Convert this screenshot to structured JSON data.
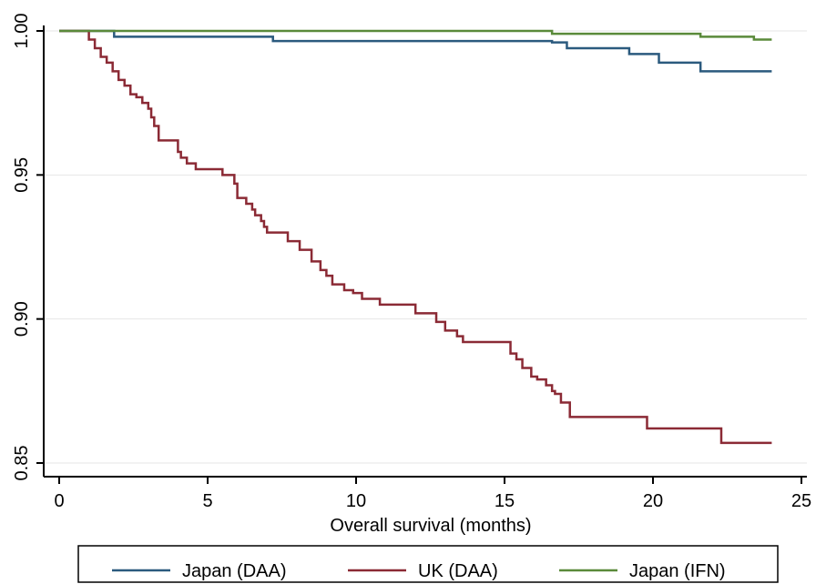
{
  "chart_data": {
    "type": "line",
    "step": true,
    "title": "",
    "xlabel": "Overall survival (months)",
    "ylabel": "",
    "xlim": [
      0,
      25
    ],
    "ylim": [
      0.85,
      1.0
    ],
    "x_ticks": [
      "0",
      "5",
      "10",
      "15",
      "20",
      "25"
    ],
    "y_ticks": [
      "0.85",
      "0.90",
      "0.95",
      "1.00"
    ],
    "grid": true,
    "legend_position": "bottom",
    "series": [
      {
        "name": "Japan (DAA)",
        "color": "#2b5a7e",
        "x": [
          0,
          1.85,
          1.85,
          7.2,
          7.2,
          16.6,
          16.6,
          17.1,
          17.1,
          19.2,
          19.2,
          20.2,
          20.2,
          21.6,
          21.6,
          24.0
        ],
        "y": [
          1.0,
          1.0,
          0.998,
          0.998,
          0.9965,
          0.9965,
          0.996,
          0.996,
          0.994,
          0.994,
          0.992,
          0.992,
          0.989,
          0.989,
          0.986,
          0.986
        ]
      },
      {
        "name": "UK (DAA)",
        "color": "#8b2a35",
        "x": [
          0,
          0.9,
          1.0,
          1.2,
          1.4,
          1.6,
          1.8,
          2.0,
          2.2,
          2.4,
          2.6,
          2.8,
          3.0,
          3.1,
          3.2,
          3.35,
          3.6,
          4.0,
          4.1,
          4.3,
          4.6,
          5.0,
          5.5,
          5.9,
          6.0,
          6.3,
          6.5,
          6.6,
          6.8,
          6.9,
          7.0,
          7.7,
          8.1,
          8.5,
          8.8,
          9.0,
          9.2,
          9.6,
          9.9,
          10.2,
          10.8,
          11.7,
          12.0,
          12.7,
          13.0,
          13.4,
          13.6,
          13.9,
          14.4,
          15.2,
          15.4,
          15.6,
          15.9,
          16.1,
          16.4,
          16.6,
          16.7,
          16.9,
          17.2,
          19.5,
          19.8,
          22.0,
          22.3,
          24.0
        ],
        "y": [
          1.0,
          1.0,
          0.997,
          0.994,
          0.991,
          0.989,
          0.986,
          0.983,
          0.981,
          0.978,
          0.977,
          0.975,
          0.973,
          0.97,
          0.967,
          0.962,
          0.962,
          0.958,
          0.956,
          0.954,
          0.952,
          0.952,
          0.95,
          0.947,
          0.942,
          0.94,
          0.938,
          0.936,
          0.934,
          0.932,
          0.93,
          0.927,
          0.924,
          0.92,
          0.917,
          0.915,
          0.912,
          0.91,
          0.909,
          0.907,
          0.905,
          0.905,
          0.902,
          0.899,
          0.896,
          0.894,
          0.892,
          0.892,
          0.892,
          0.888,
          0.886,
          0.883,
          0.88,
          0.879,
          0.877,
          0.875,
          0.874,
          0.871,
          0.866,
          0.866,
          0.862,
          0.862,
          0.857,
          0.857
        ]
      },
      {
        "name": "Japan (IFN)",
        "color": "#5a8a3a",
        "x": [
          0,
          16.6,
          16.6,
          21.6,
          21.6,
          23.4,
          23.4,
          24.0
        ],
        "y": [
          1.0,
          1.0,
          0.999,
          0.999,
          0.998,
          0.998,
          0.997,
          0.997
        ]
      }
    ]
  }
}
